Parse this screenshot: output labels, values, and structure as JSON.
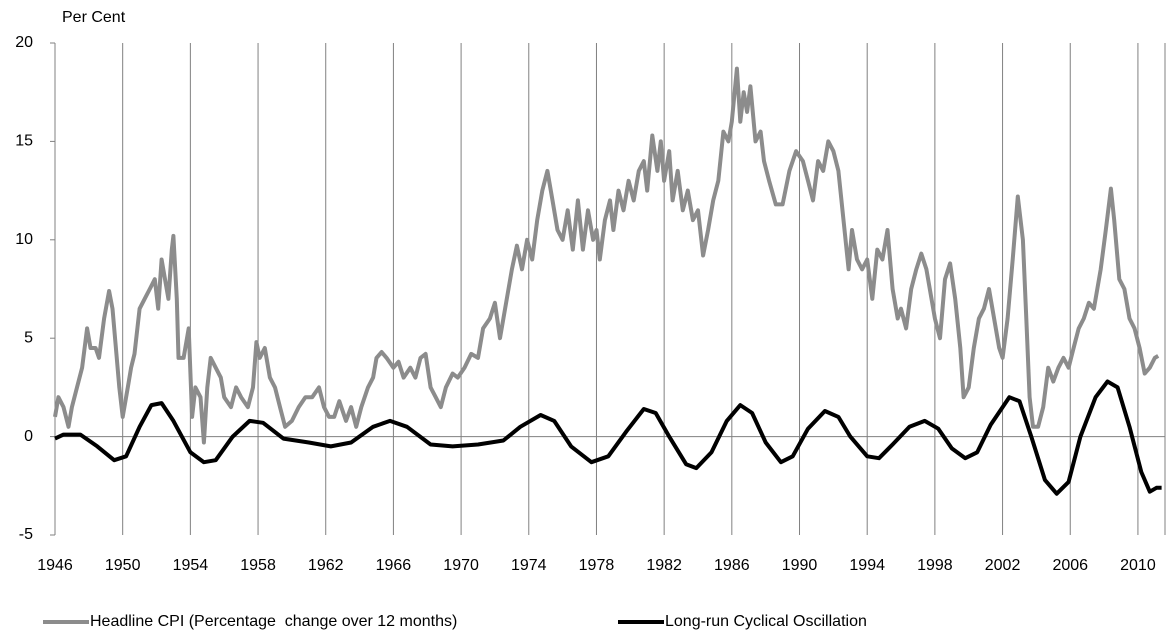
{
  "chart_data": {
    "type": "line",
    "y_label": "Per Cent",
    "xlim": [
      1946,
      2011.6
    ],
    "xticks": [
      1946,
      1950,
      1954,
      1958,
      1962,
      1966,
      1970,
      1974,
      1978,
      1982,
      1986,
      1990,
      1994,
      1998,
      2002,
      2006,
      2010
    ],
    "ylim": [
      -5,
      20
    ],
    "yticks": [
      -5,
      0,
      5,
      10,
      15,
      20
    ],
    "grid": true,
    "legend": "bottom",
    "series": [
      {
        "name": "Headline CPI (Percentage  change over 12 months)",
        "color": "#8c8c8c",
        "x": [
          1946.0,
          1946.2,
          1946.5,
          1946.8,
          1947.0,
          1947.3,
          1947.6,
          1947.9,
          1948.1,
          1948.4,
          1948.6,
          1948.9,
          1949.2,
          1949.4,
          1949.6,
          1949.8,
          1950.0,
          1950.3,
          1950.5,
          1950.7,
          1951.0,
          1951.3,
          1951.6,
          1951.9,
          1952.1,
          1952.3,
          1952.5,
          1952.7,
          1952.9,
          1953.0,
          1953.2,
          1953.3,
          1953.6,
          1953.9,
          1954.1,
          1954.3,
          1954.6,
          1954.8,
          1955.0,
          1955.2,
          1955.5,
          1955.8,
          1956.0,
          1956.4,
          1956.7,
          1957.0,
          1957.4,
          1957.7,
          1957.9,
          1958.1,
          1958.4,
          1958.7,
          1959.0,
          1959.3,
          1959.6,
          1960.0,
          1960.4,
          1960.8,
          1961.2,
          1961.6,
          1961.9,
          1962.2,
          1962.5,
          1962.8,
          1963.2,
          1963.5,
          1963.8,
          1964.1,
          1964.5,
          1964.8,
          1965.0,
          1965.3,
          1965.6,
          1966.0,
          1966.3,
          1966.6,
          1967.0,
          1967.3,
          1967.6,
          1967.9,
          1968.2,
          1968.5,
          1968.8,
          1969.1,
          1969.5,
          1969.8,
          1970.2,
          1970.6,
          1971.0,
          1971.3,
          1971.7,
          1972.0,
          1972.3,
          1972.7,
          1973.0,
          1973.3,
          1973.6,
          1973.9,
          1974.2,
          1974.5,
          1974.8,
          1975.1,
          1975.4,
          1975.7,
          1976.0,
          1976.3,
          1976.6,
          1976.9,
          1977.2,
          1977.5,
          1977.8,
          1978.0,
          1978.2,
          1978.5,
          1978.8,
          1979.0,
          1979.3,
          1979.6,
          1979.9,
          1980.2,
          1980.5,
          1980.8,
          1981.0,
          1981.3,
          1981.6,
          1981.8,
          1982.0,
          1982.3,
          1982.5,
          1982.8,
          1983.1,
          1983.4,
          1983.7,
          1984.0,
          1984.3,
          1984.6,
          1984.9,
          1985.2,
          1985.5,
          1985.8,
          1986.0,
          1986.3,
          1986.5,
          1986.7,
          1986.9,
          1987.1,
          1987.4,
          1987.7,
          1987.9,
          1988.2,
          1988.6,
          1989.0,
          1989.4,
          1989.8,
          1990.2,
          1990.5,
          1990.8,
          1991.1,
          1991.4,
          1991.7,
          1992.0,
          1992.3,
          1992.6,
          1992.9,
          1993.1,
          1993.4,
          1993.7,
          1994.0,
          1994.3,
          1994.6,
          1994.9,
          1995.2,
          1995.5,
          1995.8,
          1996.0,
          1996.3,
          1996.6,
          1996.9,
          1997.2,
          1997.5,
          1997.8,
          1998.0,
          1998.3,
          1998.6,
          1998.9,
          1999.2,
          1999.5,
          1999.7,
          2000.0,
          2000.3,
          2000.6,
          2000.9,
          2001.2,
          2001.5,
          2001.8,
          2002.0,
          2002.3,
          2002.6,
          2002.9,
          2003.2,
          2003.4,
          2003.6,
          2003.8,
          2004.1,
          2004.4,
          2004.7,
          2005.0,
          2005.3,
          2005.6,
          2005.9,
          2006.2,
          2006.5,
          2006.8,
          2007.1,
          2007.4,
          2007.8,
          2008.1,
          2008.4,
          2008.6,
          2008.9,
          2009.2,
          2009.5,
          2009.8,
          2010.1,
          2010.4,
          2010.7,
          2011.0,
          2011.2
        ],
        "values": [
          1.0,
          2.0,
          1.5,
          0.5,
          1.5,
          2.5,
          3.5,
          5.5,
          4.5,
          4.5,
          4.0,
          6.0,
          7.4,
          6.5,
          4.5,
          2.5,
          1.0,
          2.5,
          3.5,
          4.2,
          6.5,
          7.0,
          7.5,
          8.0,
          6.5,
          9.0,
          8.0,
          7.0,
          9.5,
          10.2,
          7.0,
          4.0,
          4.0,
          5.5,
          1.0,
          2.5,
          2.0,
          -0.3,
          2.5,
          4.0,
          3.5,
          3.0,
          2.0,
          1.5,
          2.5,
          2.0,
          1.5,
          2.5,
          4.8,
          4.0,
          4.5,
          3.0,
          2.5,
          1.5,
          0.5,
          0.8,
          1.5,
          2.0,
          2.0,
          2.5,
          1.5,
          1.0,
          1.0,
          1.8,
          0.8,
          1.5,
          0.5,
          1.5,
          2.5,
          3.0,
          4.0,
          4.3,
          4.0,
          3.5,
          3.8,
          3.0,
          3.5,
          3.0,
          4.0,
          4.2,
          2.5,
          2.0,
          1.5,
          2.5,
          3.2,
          3.0,
          3.5,
          4.2,
          4.0,
          5.5,
          6.0,
          6.8,
          5.0,
          7.0,
          8.5,
          9.7,
          8.5,
          10.0,
          9.0,
          11.0,
          12.5,
          13.5,
          12.0,
          10.5,
          10.0,
          11.5,
          9.5,
          12.0,
          9.5,
          11.5,
          10.0,
          10.5,
          9.0,
          11.0,
          12.0,
          10.5,
          12.5,
          11.5,
          13.0,
          12.0,
          13.5,
          14.0,
          12.5,
          15.3,
          13.5,
          15.0,
          13.0,
          14.5,
          12.0,
          13.5,
          11.5,
          12.5,
          11.0,
          11.5,
          9.2,
          10.5,
          12.0,
          13.0,
          15.5,
          15.0,
          16.0,
          18.7,
          16.0,
          17.5,
          16.5,
          17.8,
          15.0,
          15.5,
          14.0,
          13.0,
          11.8,
          11.8,
          13.5,
          14.5,
          14.0,
          13.0,
          12.0,
          14.0,
          13.5,
          15.0,
          14.5,
          13.5,
          11.0,
          8.5,
          10.5,
          9.0,
          8.5,
          9.0,
          7.0,
          9.5,
          9.0,
          10.5,
          7.5,
          6.0,
          6.5,
          5.5,
          7.5,
          8.5,
          9.3,
          8.5,
          7.0,
          6.0,
          5.0,
          8.0,
          8.8,
          7.0,
          4.5,
          2.0,
          2.5,
          4.5,
          6.0,
          6.5,
          7.5,
          6.0,
          4.5,
          4.0,
          6.0,
          9.0,
          12.2,
          10.0,
          6.0,
          2.0,
          0.5,
          0.5,
          1.5,
          3.5,
          2.8,
          3.5,
          4.0,
          3.5,
          4.5,
          5.5,
          6.0,
          6.8,
          6.5,
          8.5,
          10.5,
          12.6,
          11.0,
          8.0,
          7.5,
          6.0,
          5.5,
          4.5,
          3.2,
          3.5,
          4.0,
          4.1
        ]
      },
      {
        "name": "Long-run Cyclical Oscillation",
        "color": "#000000",
        "x": [
          1946.0,
          1946.5,
          1947.5,
          1948.5,
          1949.5,
          1950.2,
          1951.0,
          1951.7,
          1952.3,
          1953.0,
          1954.0,
          1954.8,
          1955.5,
          1956.5,
          1957.5,
          1958.3,
          1959.5,
          1961.0,
          1962.3,
          1963.5,
          1964.8,
          1965.8,
          1966.8,
          1968.2,
          1969.5,
          1971.0,
          1972.5,
          1973.5,
          1974.7,
          1975.5,
          1976.5,
          1977.7,
          1978.7,
          1979.8,
          1980.8,
          1981.5,
          1982.3,
          1983.3,
          1983.9,
          1984.8,
          1985.7,
          1986.5,
          1987.2,
          1988.0,
          1988.9,
          1989.6,
          1990.5,
          1991.5,
          1992.3,
          1993.0,
          1994.0,
          1994.7,
          1995.5,
          1996.5,
          1997.4,
          1998.2,
          1999.0,
          1999.8,
          2000.5,
          2001.3,
          2002.4,
          2003.0,
          2003.7,
          2004.5,
          2005.2,
          2005.9,
          2006.6,
          2007.5,
          2008.2,
          2008.8,
          2009.5,
          2010.2,
          2010.7,
          2011.1,
          2011.4
        ],
        "values": [
          -0.1,
          0.1,
          0.1,
          -0.5,
          -1.2,
          -1.0,
          0.5,
          1.6,
          1.7,
          0.8,
          -0.8,
          -1.3,
          -1.2,
          0.0,
          0.8,
          0.7,
          -0.1,
          -0.3,
          -0.5,
          -0.3,
          0.5,
          0.8,
          0.5,
          -0.4,
          -0.5,
          -0.4,
          -0.2,
          0.5,
          1.1,
          0.8,
          -0.5,
          -1.3,
          -1.0,
          0.3,
          1.4,
          1.2,
          0.0,
          -1.4,
          -1.6,
          -0.8,
          0.8,
          1.6,
          1.2,
          -0.3,
          -1.3,
          -1.0,
          0.4,
          1.3,
          1.0,
          0.0,
          -1.0,
          -1.1,
          -0.4,
          0.5,
          0.8,
          0.4,
          -0.6,
          -1.1,
          -0.8,
          0.6,
          2.0,
          1.8,
          0.0,
          -2.2,
          -2.9,
          -2.3,
          0.0,
          2.0,
          2.8,
          2.5,
          0.5,
          -1.8,
          -2.8,
          -2.6,
          -2.6
        ]
      }
    ]
  }
}
